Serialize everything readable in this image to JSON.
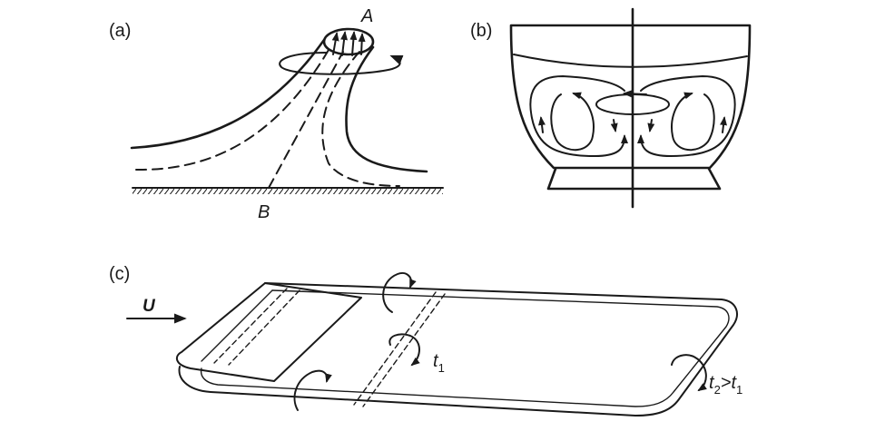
{
  "panels": {
    "a": {
      "label": "(a)",
      "point_top": "A",
      "point_bottom": "B"
    },
    "b": {
      "label": "(b)"
    },
    "c": {
      "label": "(c)",
      "velocity": "U",
      "time1_base": "t",
      "time1_sub": "1",
      "time2_base": "t",
      "time2_sub": "2",
      "time2_rel": ">t",
      "time2_rel_sub": "1"
    }
  }
}
